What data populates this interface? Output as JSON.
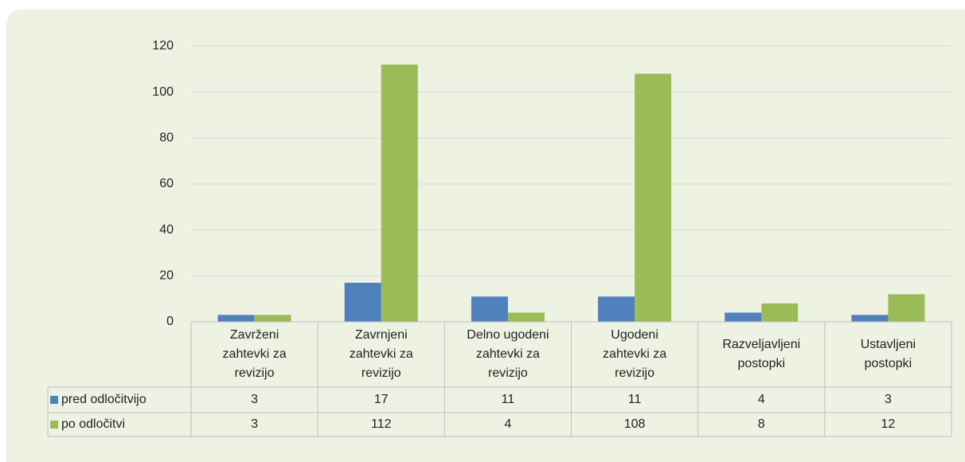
{
  "chart_data": {
    "type": "bar",
    "categories": [
      "Zavrženi zahtevki za revizijo",
      "Zavrnjeni zahtevki za revizijo",
      "Delno ugodeni zahtevki za revizijo",
      "Ugodeni zahtevki za revizijo",
      "Razveljavljeni postopki",
      "Ustavljeni postopki"
    ],
    "series": [
      {
        "name": "pred odločitvijo",
        "color": "#4f81bd",
        "values": [
          3,
          17,
          11,
          11,
          4,
          3
        ]
      },
      {
        "name": "po odločitvi",
        "color": "#9bbb59",
        "values": [
          3,
          112,
          4,
          108,
          8,
          12
        ]
      }
    ],
    "ylim": [
      0,
      120
    ],
    "yticks": [
      0,
      20,
      40,
      60,
      80,
      100,
      120
    ],
    "grid": true,
    "data_table": true
  }
}
